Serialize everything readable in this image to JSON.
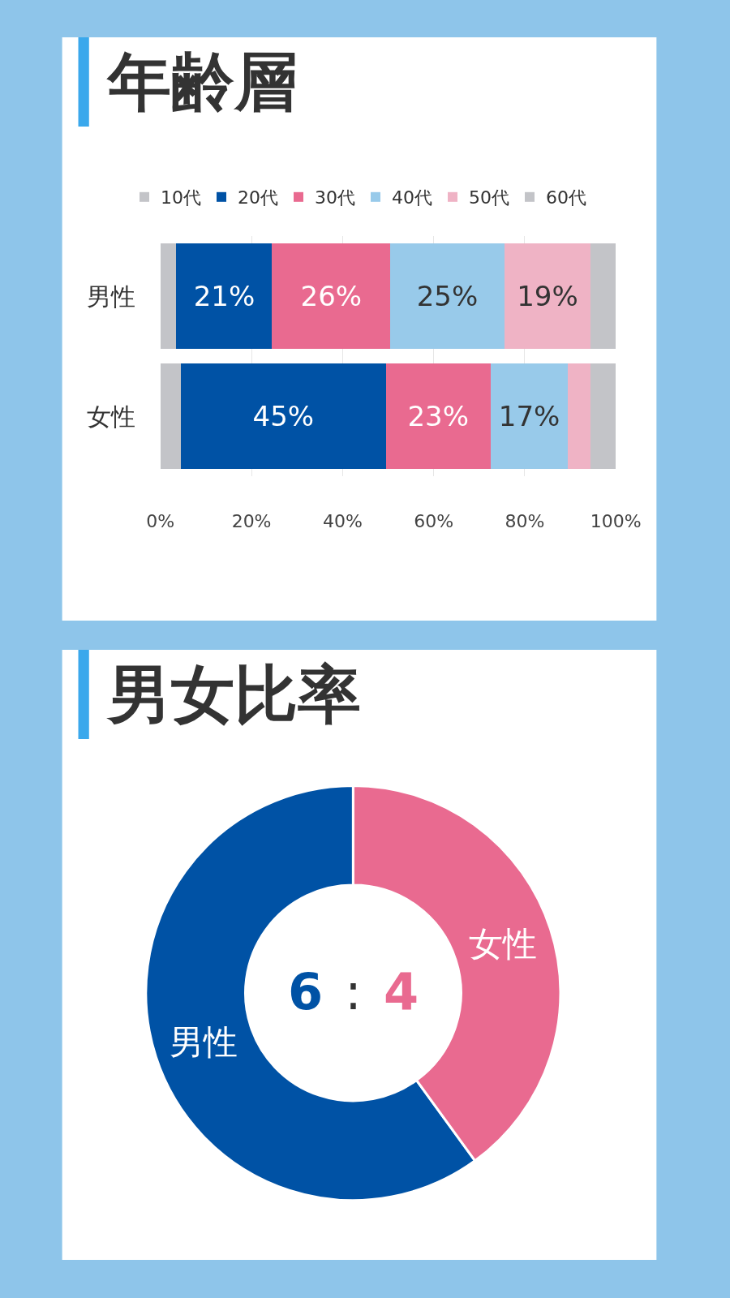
{
  "chart_data": [
    {
      "type": "bar",
      "title": "年齢層",
      "orientation": "horizontal",
      "stacked": true,
      "categories": [
        "男性",
        "女性"
      ],
      "series": [
        {
          "name": "10代",
          "color": "#c3c4c8",
          "values": [
            3.5,
            4.5
          ]
        },
        {
          "name": "20代",
          "color": "#0052a5",
          "values": [
            21,
            45
          ],
          "value_labels": [
            "21%",
            "45%"
          ]
        },
        {
          "name": "30代",
          "color": "#e96a90",
          "values": [
            26,
            23
          ],
          "value_labels": [
            "26%",
            "23%"
          ]
        },
        {
          "name": "40代",
          "color": "#98caea",
          "values": [
            25,
            17
          ],
          "value_labels": [
            "25%",
            "17%"
          ]
        },
        {
          "name": "50代",
          "color": "#efb3c5",
          "values": [
            19,
            5
          ],
          "value_labels": [
            "19%",
            null
          ]
        },
        {
          "name": "60代",
          "color": "#c3c4c8",
          "values": [
            5.5,
            5.5
          ]
        }
      ],
      "xlim": [
        0,
        100
      ],
      "xticks": [
        {
          "value": 0,
          "label": "0%"
        },
        {
          "value": 20,
          "label": "20%"
        },
        {
          "value": 40,
          "label": "40%"
        },
        {
          "value": 60,
          "label": "60%"
        },
        {
          "value": 80,
          "label": "80%"
        },
        {
          "value": 100,
          "label": "100%"
        }
      ],
      "grid": "x",
      "legend": "top"
    },
    {
      "type": "donut",
      "title": "男女比率",
      "categories": [
        "男性",
        "女性"
      ],
      "values": [
        60,
        40
      ],
      "colors": [
        "#0052a5",
        "#e96a90"
      ],
      "annotations": [
        "6",
        ":",
        "4"
      ]
    }
  ]
}
